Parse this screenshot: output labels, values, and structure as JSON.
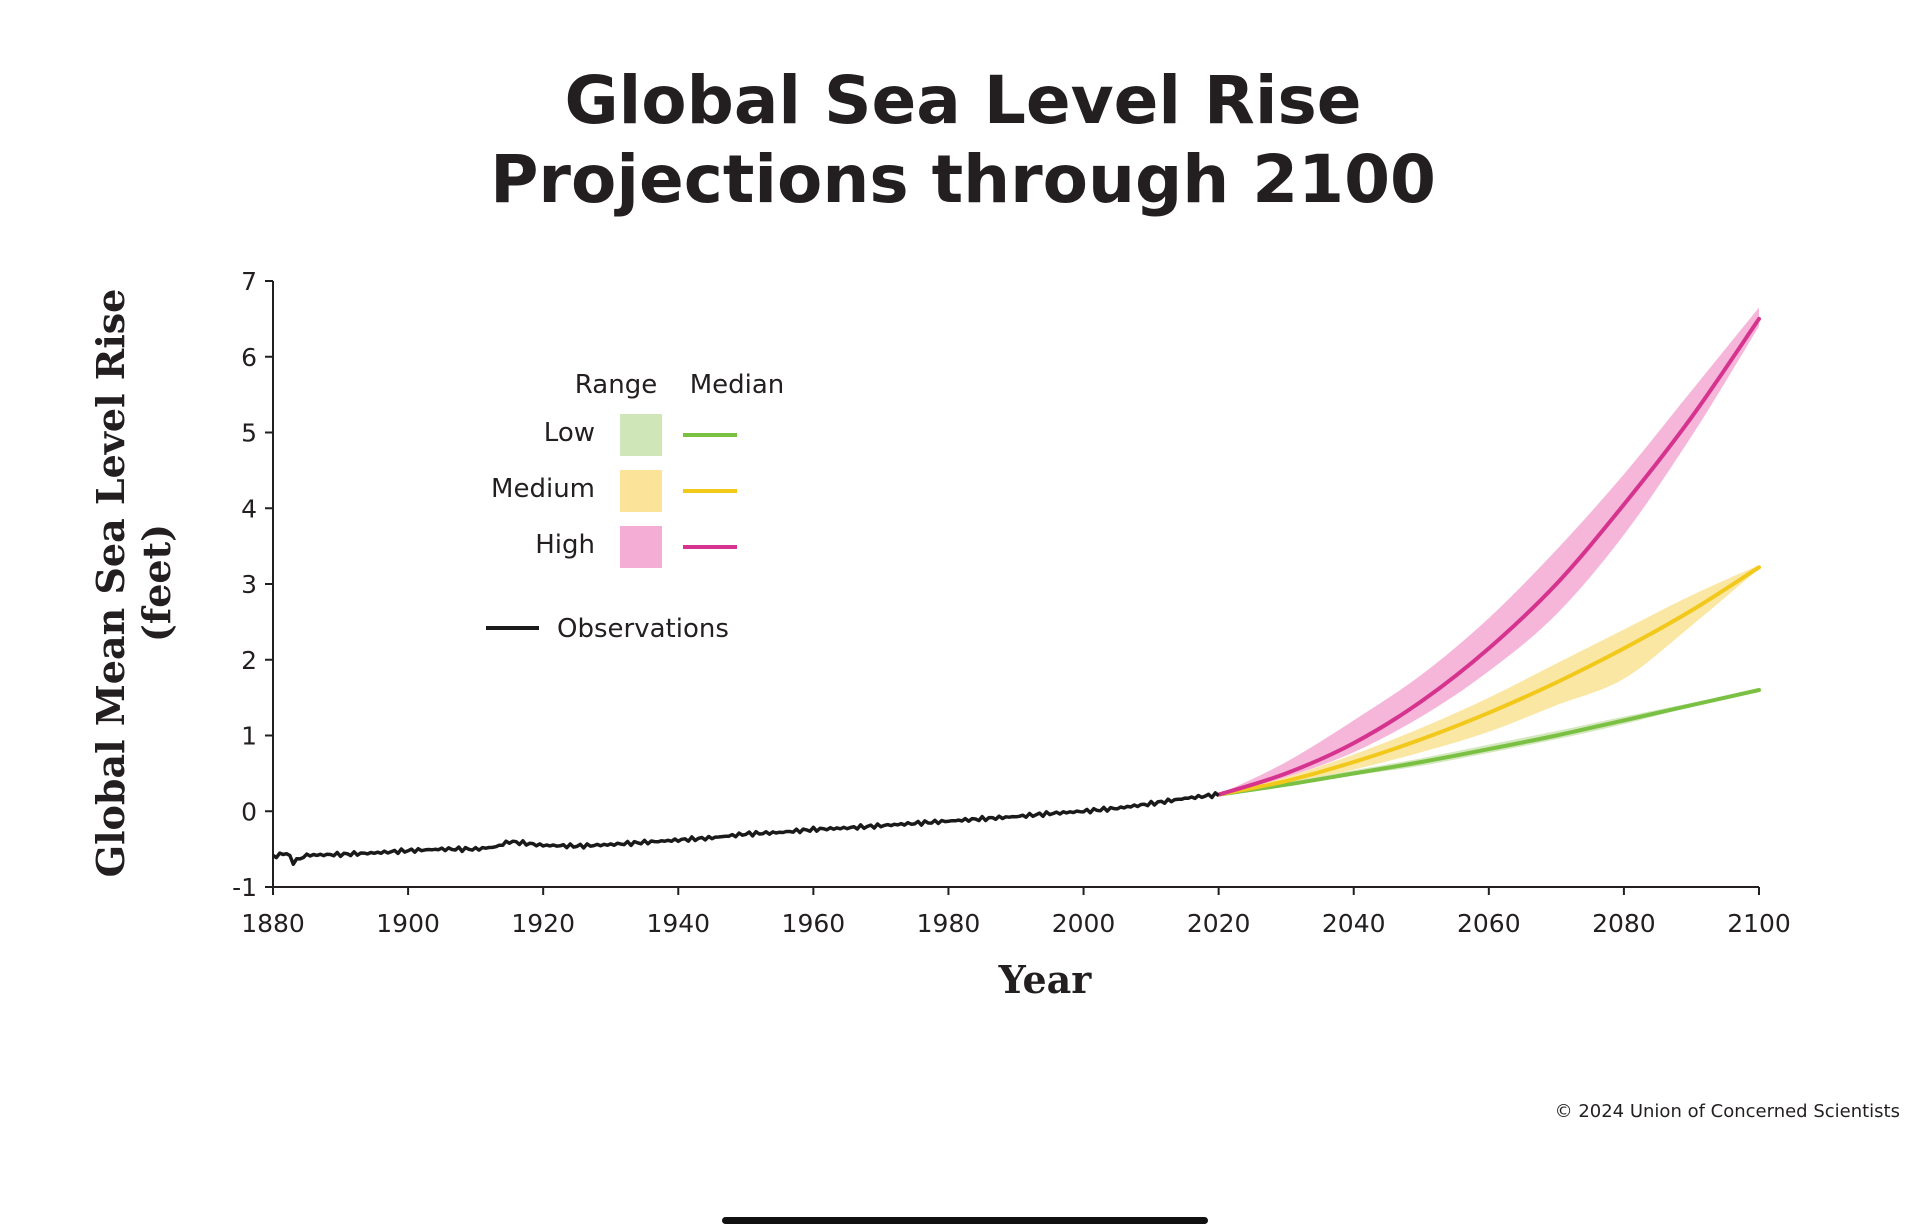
{
  "chart_data": {
    "type": "line",
    "title": [
      "Global Sea Level Rise",
      "Projections through 2100"
    ],
    "xlabel": "Year",
    "ylabel": [
      "Global Mean Sea Level Rise",
      "(feet)"
    ],
    "xlim": [
      1880,
      2100
    ],
    "ylim": [
      -1,
      7
    ],
    "x_ticks": [
      "1880",
      "1900",
      "1920",
      "1940",
      "1960",
      "1980",
      "2000",
      "2020",
      "2040",
      "2060",
      "2080",
      "2100"
    ],
    "y_ticks": [
      "-1",
      "0",
      "1",
      "2",
      "3",
      "4",
      "5",
      "6",
      "7"
    ],
    "observations": {
      "name": "Observations",
      "color": "#1a1a1a",
      "x": [
        1880,
        1882,
        1883,
        1885,
        1890,
        1895,
        1900,
        1905,
        1910,
        1913,
        1915,
        1920,
        1925,
        1930,
        1935,
        1940,
        1945,
        1950,
        1955,
        1960,
        1965,
        1970,
        1975,
        1980,
        1985,
        1990,
        1995,
        2000,
        2005,
        2010,
        2015,
        2020
      ],
      "y": [
        -0.6,
        -0.55,
        -0.67,
        -0.58,
        -0.57,
        -0.55,
        -0.52,
        -0.5,
        -0.5,
        -0.47,
        -0.4,
        -0.45,
        -0.46,
        -0.44,
        -0.41,
        -0.38,
        -0.35,
        -0.3,
        -0.28,
        -0.24,
        -0.22,
        -0.19,
        -0.16,
        -0.13,
        -0.1,
        -0.07,
        -0.03,
        0.0,
        0.04,
        0.1,
        0.17,
        0.22
      ]
    },
    "projection_years": [
      2020,
      2030,
      2040,
      2050,
      2060,
      2070,
      2080,
      2090,
      2100
    ],
    "series": [
      {
        "name": "Low",
        "median_color": "#7ac143",
        "range_color": "#cfe6b8",
        "median": [
          0.22,
          0.35,
          0.5,
          0.65,
          0.82,
          1.0,
          1.2,
          1.4,
          1.6
        ],
        "range_low": [
          0.22,
          0.33,
          0.47,
          0.6,
          0.77,
          0.95,
          1.15,
          1.38,
          1.58
        ],
        "range_high": [
          0.22,
          0.38,
          0.54,
          0.7,
          0.88,
          1.06,
          1.25,
          1.43,
          1.62
        ]
      },
      {
        "name": "Medium",
        "median_color": "#f2c81a",
        "range_color": "#fbe49a",
        "median": [
          0.22,
          0.4,
          0.65,
          0.95,
          1.3,
          1.7,
          2.15,
          2.65,
          3.22
        ],
        "range_low": [
          0.22,
          0.35,
          0.55,
          0.78,
          1.05,
          1.4,
          1.75,
          2.45,
          3.2
        ],
        "range_high": [
          0.22,
          0.45,
          0.75,
          1.1,
          1.5,
          1.95,
          2.4,
          2.85,
          3.25
        ]
      },
      {
        "name": "High",
        "median_color": "#d6338f",
        "range_color": "#f4aed5",
        "median": [
          0.22,
          0.5,
          0.9,
          1.45,
          2.15,
          3.0,
          4.05,
          5.2,
          6.5
        ],
        "range_low": [
          0.22,
          0.45,
          0.78,
          1.25,
          1.85,
          2.6,
          3.65,
          4.95,
          6.4
        ],
        "range_high": [
          0.22,
          0.65,
          1.2,
          1.8,
          2.55,
          3.45,
          4.45,
          5.55,
          6.65
        ]
      }
    ],
    "legend": {
      "position": "upper-left",
      "range_header": "Range",
      "median_header": "Median",
      "labels": [
        "Low",
        "Medium",
        "High"
      ],
      "observations_label": "Observations"
    }
  },
  "credit": "© 2024 Union of Concerned Scientists"
}
